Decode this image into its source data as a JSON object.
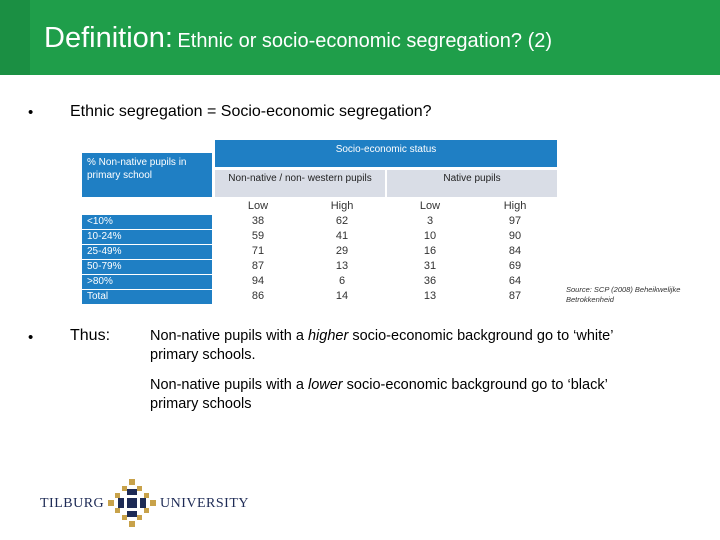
{
  "slide": {
    "title_main": "Definition:",
    "title_rest": "Ethnic or socio-economic segregation? (2)",
    "bullet1": "Ethnic segregation = Socio-economic segregation?",
    "bullet2_label": "Thus:",
    "para1_pre": "Non-native pupils with a ",
    "para1_em": "higher",
    "para1_post": " socio-economic background go to ‘white’ primary schools.",
    "para2_pre": "Non-native pupils with a ",
    "para2_em": "lower",
    "para2_post": " socio-economic background go to ‘black’ primary schools",
    "source": "Source: SCP (2008) Beheikwelijke Betrokkenheid"
  },
  "table": {
    "section_header": "Socio-economic status",
    "row_header": "% Non-native pupils in primary school",
    "group_headers": [
      "Non-native / non- western pupils",
      "Native pupils"
    ],
    "sub_headers": [
      "Low",
      "High",
      "Low",
      "High"
    ],
    "rows": [
      {
        "label": "<10%",
        "values": [
          "38",
          "62",
          "3",
          "97"
        ]
      },
      {
        "label": "10-24%",
        "values": [
          "59",
          "41",
          "10",
          "90"
        ]
      },
      {
        "label": "25-49%",
        "values": [
          "71",
          "29",
          "16",
          "84"
        ]
      },
      {
        "label": "50-79%",
        "values": [
          "87",
          "13",
          "31",
          "69"
        ]
      },
      {
        "label": ">80%",
        "values": [
          "94",
          "6",
          "36",
          "64"
        ]
      },
      {
        "label": "Total",
        "values": [
          "86",
          "14",
          "13",
          "87"
        ]
      }
    ]
  },
  "logo": {
    "left_word": "TILBURG",
    "right_word": "UNIVERSITY",
    "primary_color": "#1d2a55",
    "accent_color": "#c8a24a"
  },
  "colors": {
    "header_green": "#1f9e4a",
    "table_blue": "#1f7fc4",
    "table_grey": "#d9dde6"
  }
}
